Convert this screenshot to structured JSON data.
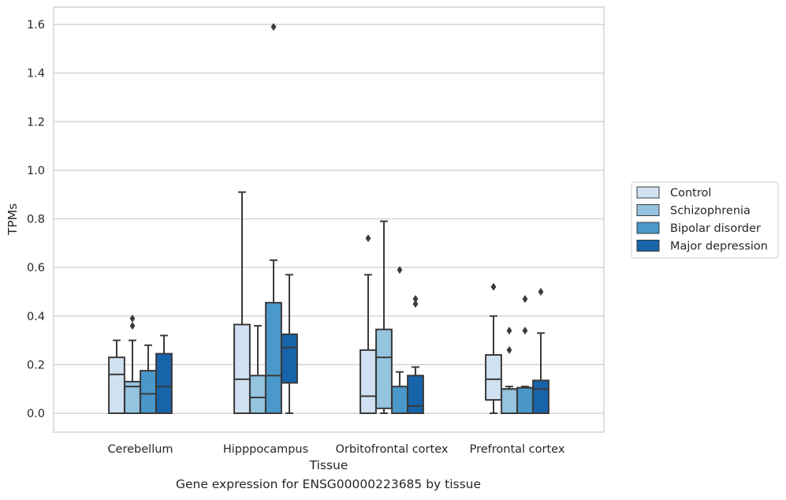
{
  "caption": "Gene expression for ENSG00000223685 by tissue",
  "chart_data": {
    "type": "box",
    "title": "",
    "xlabel": "Tissue",
    "ylabel": "TPMs",
    "ylim": [
      -0.08,
      1.67
    ],
    "yticks": [
      "0.0",
      "0.2",
      "0.4",
      "0.6",
      "0.8",
      "1.0",
      "1.2",
      "1.4",
      "1.6"
    ],
    "ytick_values": [
      0.0,
      0.2,
      0.4,
      0.6,
      0.8,
      1.0,
      1.2,
      1.4,
      1.6
    ],
    "grid": true,
    "legend_position": "right",
    "categories": [
      "Cerebellum",
      "Hipppocampus",
      "Orbitofrontal cortex",
      "Prefrontal cortex"
    ],
    "series": [
      {
        "name": "Control",
        "color": "#d0e1f2",
        "boxes": [
          {
            "whisker_low": 0.0,
            "q1": 0.0,
            "median": 0.16,
            "q3": 0.23,
            "whisker_high": 0.3,
            "outliers": []
          },
          {
            "whisker_low": 0.0,
            "q1": 0.0,
            "median": 0.14,
            "q3": 0.365,
            "whisker_high": 0.91,
            "outliers": []
          },
          {
            "whisker_low": 0.0,
            "q1": 0.0,
            "median": 0.07,
            "q3": 0.26,
            "whisker_high": 0.57,
            "outliers": [
              0.72
            ]
          },
          {
            "whisker_low": 0.0,
            "q1": 0.055,
            "median": 0.14,
            "q3": 0.24,
            "whisker_high": 0.4,
            "outliers": [
              0.52
            ]
          }
        ]
      },
      {
        "name": "Schizophrenia",
        "color": "#94c4df",
        "boxes": [
          {
            "whisker_low": 0.0,
            "q1": 0.0,
            "median": 0.11,
            "q3": 0.13,
            "whisker_high": 0.3,
            "outliers": [
              0.36,
              0.39
            ]
          },
          {
            "whisker_low": 0.0,
            "q1": 0.0,
            "median": 0.065,
            "q3": 0.155,
            "whisker_high": 0.36,
            "outliers": []
          },
          {
            "whisker_low": 0.0,
            "q1": 0.02,
            "median": 0.23,
            "q3": 0.345,
            "whisker_high": 0.79,
            "outliers": []
          },
          {
            "whisker_low": 0.0,
            "q1": 0.0,
            "median": 0.1,
            "q3": 0.1,
            "whisker_high": 0.11,
            "outliers": [
              0.26,
              0.34
            ]
          }
        ]
      },
      {
        "name": "Bipolar disorder",
        "color": "#4a98c9",
        "boxes": [
          {
            "whisker_low": 0.0,
            "q1": 0.0,
            "median": 0.08,
            "q3": 0.175,
            "whisker_high": 0.28,
            "outliers": []
          },
          {
            "whisker_low": 0.0,
            "q1": 0.0,
            "median": 0.155,
            "q3": 0.455,
            "whisker_high": 0.63,
            "outliers": [
              1.59
            ]
          },
          {
            "whisker_low": 0.0,
            "q1": 0.0,
            "median": 0.0,
            "q3": 0.11,
            "whisker_high": 0.17,
            "outliers": [
              0.59
            ]
          },
          {
            "whisker_low": 0.0,
            "q1": 0.0,
            "median": 0.105,
            "q3": 0.105,
            "whisker_high": 0.11,
            "outliers": [
              0.34,
              0.47
            ]
          }
        ]
      },
      {
        "name": "Major depression",
        "color": "#1764ab",
        "boxes": [
          {
            "whisker_low": 0.0,
            "q1": 0.0,
            "median": 0.11,
            "q3": 0.245,
            "whisker_high": 0.32,
            "outliers": []
          },
          {
            "whisker_low": 0.0,
            "q1": 0.125,
            "median": 0.27,
            "q3": 0.325,
            "whisker_high": 0.57,
            "outliers": []
          },
          {
            "whisker_low": 0.0,
            "q1": 0.0,
            "median": 0.03,
            "q3": 0.155,
            "whisker_high": 0.19,
            "outliers": [
              0.45,
              0.47
            ]
          },
          {
            "whisker_low": 0.0,
            "q1": 0.0,
            "median": 0.1,
            "q3": 0.135,
            "whisker_high": 0.33,
            "outliers": [
              0.5
            ]
          }
        ]
      }
    ]
  }
}
